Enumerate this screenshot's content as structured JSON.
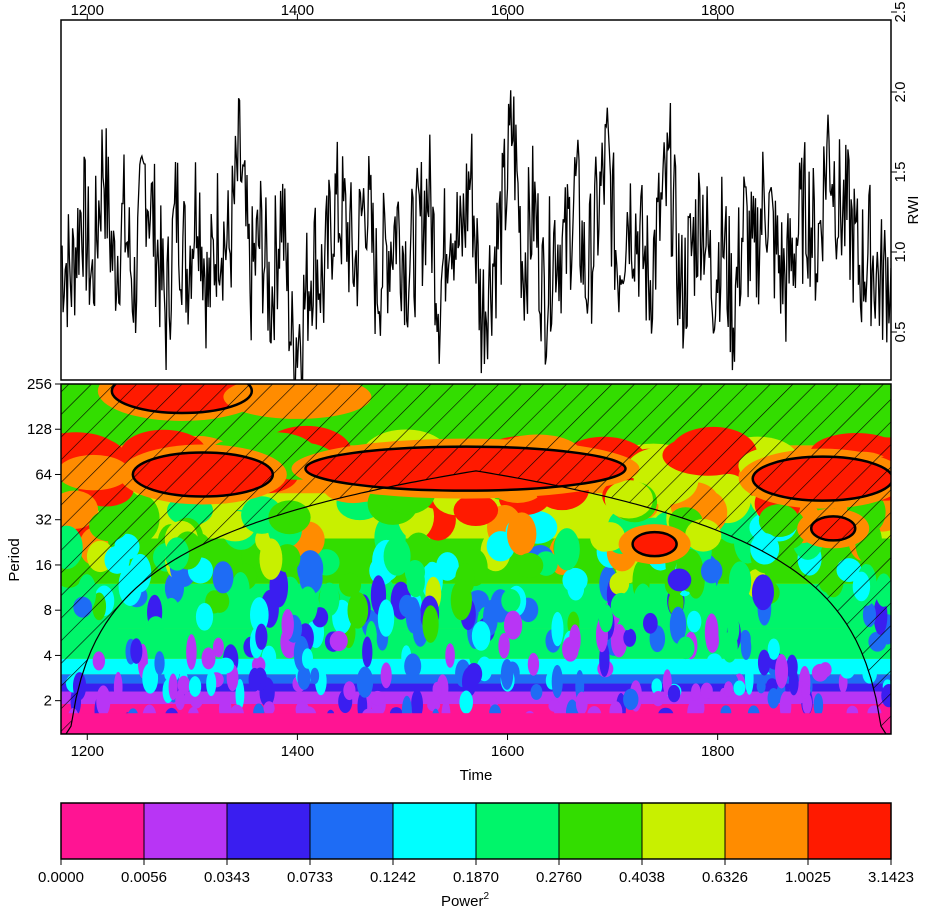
{
  "chart_data": [
    {
      "type": "line",
      "title": "",
      "xlabel": "",
      "ylabel": "RWI",
      "xlim": [
        1175,
        1965
      ],
      "ylim": [
        0.2,
        2.45
      ],
      "x_ticks": [
        1200,
        1400,
        1600,
        1800
      ],
      "y_ticks": [
        0.5,
        1.0,
        1.5,
        2.0,
        2.5
      ],
      "y_tick_labels": [
        "0.5",
        "1.0",
        "1.5",
        "2.0",
        "2.5"
      ],
      "series": [
        {
          "x": [
            1175,
            1185,
            1195,
            1205,
            1215,
            1225,
            1235,
            1245,
            1255,
            1265,
            1275,
            1285,
            1295,
            1305,
            1315,
            1325,
            1335,
            1345,
            1355,
            1365,
            1375,
            1385,
            1395,
            1405,
            1415,
            1425,
            1435,
            1445,
            1455,
            1465,
            1475,
            1485,
            1495,
            1505,
            1515,
            1525,
            1535,
            1545,
            1555,
            1565,
            1575,
            1585,
            1595,
            1605,
            1615,
            1625,
            1635,
            1645,
            1655,
            1665,
            1675,
            1685,
            1695,
            1705,
            1715,
            1725,
            1735,
            1745,
            1755,
            1765,
            1775,
            1785,
            1795,
            1805,
            1815,
            1825,
            1835,
            1845,
            1855,
            1865,
            1875,
            1885,
            1895,
            1905,
            1915,
            1925,
            1935,
            1945,
            1955,
            1965
          ],
          "values": [
            1.0,
            0.85,
            1.3,
            0.8,
            1.6,
            0.9,
            1.2,
            0.75,
            1.5,
            1.1,
            0.6,
            1.3,
            0.9,
            1.4,
            0.7,
            1.2,
            1.0,
            1.6,
            0.8,
            1.1,
            0.7,
            1.3,
            0.4,
            0.6,
            1.0,
            0.8,
            1.3,
            1.2,
            0.9,
            1.4,
            0.8,
            1.0,
            1.2,
            0.9,
            1.1,
            1.4,
            0.7,
            1.3,
            1.0,
            1.5,
            0.6,
            0.9,
            1.2,
            1.8,
            0.9,
            1.3,
            0.7,
            1.1,
            1.0,
            1.4,
            0.8,
            1.2,
            1.6,
            0.9,
            1.3,
            1.1,
            0.8,
            1.2,
            1.5,
            0.7,
            1.0,
            1.3,
            0.8,
            1.1,
            0.6,
            1.2,
            0.9,
            1.4,
            1.0,
            0.8,
            1.1,
            1.3,
            1.0,
            1.7,
            1.3,
            1.2,
            0.9,
            1.0,
            0.8,
            0.9
          ]
        }
      ]
    },
    {
      "type": "heatmap",
      "title": "",
      "xlabel": "Time",
      "ylabel": "Period",
      "xlim": [
        1175,
        1965
      ],
      "x_ticks": [
        1200,
        1400,
        1600,
        1800
      ],
      "y_ticks": [
        2,
        4,
        8,
        16,
        32,
        64,
        128,
        256
      ],
      "y_scale": "log2",
      "regions": [
        {
          "x": 1310,
          "y": 64,
          "power": 3.14
        },
        {
          "x": 1560,
          "y": 70,
          "power": 3.14
        },
        {
          "x": 1900,
          "y": 60,
          "power": 3.14
        },
        {
          "x": 1290,
          "y": 230,
          "power": 3.14
        },
        {
          "x": 1400,
          "y": 210,
          "power": 1.0
        },
        {
          "x": 1740,
          "y": 22,
          "power": 3.14
        },
        {
          "x": 1910,
          "y": 28,
          "power": 3.14
        }
      ]
    },
    {
      "type": "colorbar",
      "xlabel": "Power",
      "xlabel_superscript": "2",
      "boundaries": [
        "0.0000",
        "0.0056",
        "0.0343",
        "0.0733",
        "0.1242",
        "0.1870",
        "0.2760",
        "0.4038",
        "0.6326",
        "1.0025",
        "3.1423"
      ],
      "colors": [
        "#ff1493",
        "#b835f5",
        "#3a1ef0",
        "#1e6cf5",
        "#00ffff",
        "#00f56a",
        "#33dd00",
        "#c8f000",
        "#ff8c00",
        "#ff1a00"
      ]
    }
  ]
}
